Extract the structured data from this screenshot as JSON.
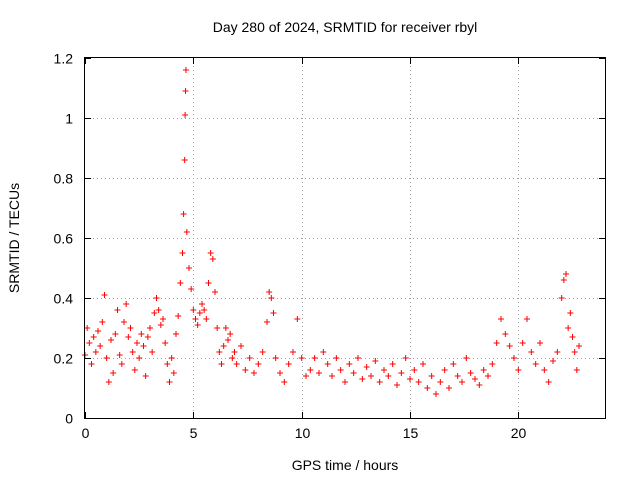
{
  "chart_data": {
    "type": "scatter",
    "title": "Day 280 of 2024, SRMTID for receiver rbyl",
    "xlabel": "GPS time / hours",
    "ylabel": "SRMTID / TECUs",
    "xlim": [
      0,
      24
    ],
    "ylim": [
      0,
      1.2
    ],
    "xticks": [
      0,
      5,
      10,
      15,
      20
    ],
    "xtick_labels": [
      "0",
      "5",
      "10",
      "15",
      "20"
    ],
    "yticks": [
      0,
      0.2,
      0.4,
      0.6,
      0.8,
      1,
      1.2
    ],
    "ytick_labels": [
      "0",
      "0.2",
      "0.4",
      "0.6",
      "0.8",
      "1",
      "1.2"
    ],
    "grid": true,
    "marker": "+",
    "color": "#ff0000",
    "series": [
      {
        "name": "SRMTID",
        "points": [
          [
            0.0,
            0.21
          ],
          [
            0.1,
            0.3
          ],
          [
            0.2,
            0.25
          ],
          [
            0.3,
            0.18
          ],
          [
            0.4,
            0.27
          ],
          [
            0.5,
            0.22
          ],
          [
            0.6,
            0.29
          ],
          [
            0.7,
            0.24
          ],
          [
            0.8,
            0.32
          ],
          [
            0.9,
            0.41
          ],
          [
            1.0,
            0.2
          ],
          [
            1.1,
            0.12
          ],
          [
            1.2,
            0.26
          ],
          [
            1.3,
            0.15
          ],
          [
            1.4,
            0.28
          ],
          [
            1.5,
            0.36
          ],
          [
            1.6,
            0.21
          ],
          [
            1.7,
            0.18
          ],
          [
            1.8,
            0.32
          ],
          [
            1.9,
            0.38
          ],
          [
            2.0,
            0.27
          ],
          [
            2.1,
            0.3
          ],
          [
            2.2,
            0.22
          ],
          [
            2.3,
            0.16
          ],
          [
            2.4,
            0.25
          ],
          [
            2.5,
            0.2
          ],
          [
            2.6,
            0.28
          ],
          [
            2.7,
            0.24
          ],
          [
            2.8,
            0.14
          ],
          [
            2.9,
            0.27
          ],
          [
            3.0,
            0.3
          ],
          [
            3.1,
            0.22
          ],
          [
            3.2,
            0.35
          ],
          [
            3.3,
            0.4
          ],
          [
            3.4,
            0.36
          ],
          [
            3.5,
            0.31
          ],
          [
            3.6,
            0.33
          ],
          [
            3.7,
            0.25
          ],
          [
            3.8,
            0.18
          ],
          [
            3.9,
            0.12
          ],
          [
            4.0,
            0.2
          ],
          [
            4.1,
            0.15
          ],
          [
            4.2,
            0.28
          ],
          [
            4.3,
            0.34
          ],
          [
            4.4,
            0.45
          ],
          [
            4.5,
            0.55
          ],
          [
            4.55,
            0.68
          ],
          [
            4.6,
            0.86
          ],
          [
            4.62,
            1.01
          ],
          [
            4.64,
            1.09
          ],
          [
            4.66,
            1.16
          ],
          [
            4.7,
            0.62
          ],
          [
            4.8,
            0.5
          ],
          [
            4.9,
            0.43
          ],
          [
            5.0,
            0.36
          ],
          [
            5.1,
            0.33
          ],
          [
            5.2,
            0.31
          ],
          [
            5.3,
            0.35
          ],
          [
            5.4,
            0.38
          ],
          [
            5.5,
            0.36
          ],
          [
            5.6,
            0.33
          ],
          [
            5.7,
            0.45
          ],
          [
            5.8,
            0.55
          ],
          [
            5.9,
            0.53
          ],
          [
            6.0,
            0.42
          ],
          [
            6.1,
            0.3
          ],
          [
            6.2,
            0.22
          ],
          [
            6.3,
            0.18
          ],
          [
            6.4,
            0.24
          ],
          [
            6.5,
            0.3
          ],
          [
            6.6,
            0.26
          ],
          [
            6.7,
            0.28
          ],
          [
            6.8,
            0.2
          ],
          [
            6.9,
            0.22
          ],
          [
            7.0,
            0.18
          ],
          [
            7.2,
            0.24
          ],
          [
            7.4,
            0.16
          ],
          [
            7.6,
            0.2
          ],
          [
            7.8,
            0.15
          ],
          [
            8.0,
            0.18
          ],
          [
            8.2,
            0.22
          ],
          [
            8.4,
            0.32
          ],
          [
            8.5,
            0.42
          ],
          [
            8.6,
            0.4
          ],
          [
            8.7,
            0.35
          ],
          [
            8.8,
            0.2
          ],
          [
            9.0,
            0.15
          ],
          [
            9.2,
            0.12
          ],
          [
            9.4,
            0.18
          ],
          [
            9.6,
            0.22
          ],
          [
            9.8,
            0.33
          ],
          [
            10.0,
            0.2
          ],
          [
            10.2,
            0.14
          ],
          [
            10.4,
            0.16
          ],
          [
            10.6,
            0.2
          ],
          [
            10.8,
            0.15
          ],
          [
            11.0,
            0.22
          ],
          [
            11.2,
            0.18
          ],
          [
            11.4,
            0.14
          ],
          [
            11.6,
            0.2
          ],
          [
            11.8,
            0.16
          ],
          [
            12.0,
            0.12
          ],
          [
            12.2,
            0.18
          ],
          [
            12.4,
            0.15
          ],
          [
            12.6,
            0.2
          ],
          [
            12.8,
            0.13
          ],
          [
            13.0,
            0.17
          ],
          [
            13.2,
            0.14
          ],
          [
            13.4,
            0.19
          ],
          [
            13.6,
            0.12
          ],
          [
            13.8,
            0.16
          ],
          [
            14.0,
            0.14
          ],
          [
            14.2,
            0.18
          ],
          [
            14.4,
            0.11
          ],
          [
            14.6,
            0.15
          ],
          [
            14.8,
            0.2
          ],
          [
            15.0,
            0.13
          ],
          [
            15.2,
            0.16
          ],
          [
            15.4,
            0.12
          ],
          [
            15.6,
            0.18
          ],
          [
            15.8,
            0.1
          ],
          [
            16.0,
            0.14
          ],
          [
            16.2,
            0.08
          ],
          [
            16.4,
            0.12
          ],
          [
            16.6,
            0.16
          ],
          [
            16.8,
            0.1
          ],
          [
            17.0,
            0.18
          ],
          [
            17.2,
            0.14
          ],
          [
            17.4,
            0.12
          ],
          [
            17.6,
            0.2
          ],
          [
            17.8,
            0.15
          ],
          [
            18.0,
            0.13
          ],
          [
            18.2,
            0.11
          ],
          [
            18.4,
            0.16
          ],
          [
            18.6,
            0.14
          ],
          [
            18.8,
            0.18
          ],
          [
            19.0,
            0.25
          ],
          [
            19.2,
            0.33
          ],
          [
            19.4,
            0.28
          ],
          [
            19.6,
            0.24
          ],
          [
            19.8,
            0.2
          ],
          [
            20.0,
            0.16
          ],
          [
            20.2,
            0.25
          ],
          [
            20.4,
            0.33
          ],
          [
            20.6,
            0.22
          ],
          [
            20.8,
            0.18
          ],
          [
            21.0,
            0.25
          ],
          [
            21.2,
            0.16
          ],
          [
            21.4,
            0.12
          ],
          [
            21.6,
            0.19
          ],
          [
            21.8,
            0.22
          ],
          [
            22.0,
            0.4
          ],
          [
            22.1,
            0.46
          ],
          [
            22.2,
            0.48
          ],
          [
            22.3,
            0.3
          ],
          [
            22.4,
            0.35
          ],
          [
            22.5,
            0.27
          ],
          [
            22.6,
            0.22
          ],
          [
            22.7,
            0.16
          ],
          [
            22.8,
            0.24
          ]
        ]
      }
    ]
  }
}
